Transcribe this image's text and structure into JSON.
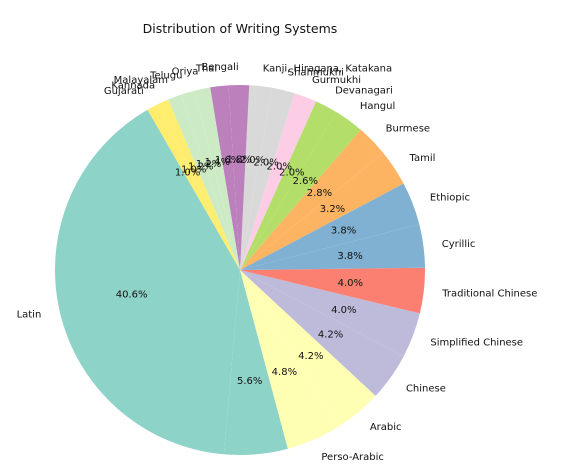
{
  "chart_data": {
    "type": "pie",
    "title": "Distribution of Writing Systems",
    "slices": [
      {
        "label": "Latin",
        "value": 40.6,
        "pct_label": "40.6%",
        "color": "#8ed3c7"
      },
      {
        "label": "Devanagari",
        "value": 5.6,
        "pct_label": "5.6%",
        "color": "#8ed3c7"
      },
      {
        "label": "Perso-Arabic",
        "value": 4.8,
        "pct_label": "4.8%",
        "color": "#ffffb3"
      },
      {
        "label": "Arabic",
        "value": 4.2,
        "pct_label": "4.2%",
        "color": "#ffffb3"
      },
      {
        "label": "Chinese",
        "value": 4.2,
        "pct_label": "4.2%",
        "color": "#bebada"
      },
      {
        "label": "Simplified Chinese",
        "value": 4.0,
        "pct_label": "4.0%",
        "color": "#bebada"
      },
      {
        "label": "Traditional Chinese",
        "value": 4.0,
        "pct_label": "4.0%",
        "color": "#fb8072"
      },
      {
        "label": "Cyrillic",
        "value": 3.8,
        "pct_label": "3.8%",
        "color": "#80b1d3"
      },
      {
        "label": "Ethiopic",
        "value": 3.8,
        "pct_label": "3.8%",
        "color": "#80b1d3"
      },
      {
        "label": "Tamil",
        "value": 3.2,
        "pct_label": "3.2%",
        "color": "#fdb462"
      },
      {
        "label": "Burmese",
        "value": 2.8,
        "pct_label": "2.8%",
        "color": "#fdb462"
      },
      {
        "label": "Hangul",
        "value": 2.6,
        "pct_label": "2.6%",
        "color": "#b3de69"
      },
      {
        "label": "Devanagari",
        "value": 2.0,
        "pct_label": "2.0%",
        "color": "#b3de69"
      },
      {
        "label": "Gurmukhi",
        "value": 2.0,
        "pct_label": "2.0%",
        "color": "#fccde5"
      },
      {
        "label": "Shahmukhi",
        "value": 2.0,
        "pct_label": "2.0%",
        "color": "#d9d9d9"
      },
      {
        "label": "Kanji, Hiragana, Katakana",
        "value": 2.0,
        "pct_label": "2.0%",
        "color": "#d9d9d9"
      },
      {
        "label": "Bengali",
        "value": 1.8,
        "pct_label": "1.8%",
        "color": "#bc80bd"
      },
      {
        "label": "Thai",
        "value": 1.6,
        "pct_label": "1.6%",
        "color": "#bc80bd"
      },
      {
        "label": "Oriya",
        "value": 1.4,
        "pct_label": "1.4%",
        "color": "#ccebc5"
      },
      {
        "label": "Telugu",
        "value": 1.2,
        "pct_label": "1.2%",
        "color": "#ccebc5"
      },
      {
        "label": "Malayalam",
        "value": 1.2,
        "pct_label": "1.2%",
        "color": "#ccebc5"
      },
      {
        "label": "Kannada",
        "value": 1.0,
        "pct_label": "1.0%",
        "color": "#ffed6f"
      },
      {
        "label": "Gujarati",
        "value": 1.0,
        "pct_label": "1.0%",
        "color": "#ffed6f"
      }
    ],
    "start_angle_deg": 120,
    "direction": "counterclockwise"
  }
}
